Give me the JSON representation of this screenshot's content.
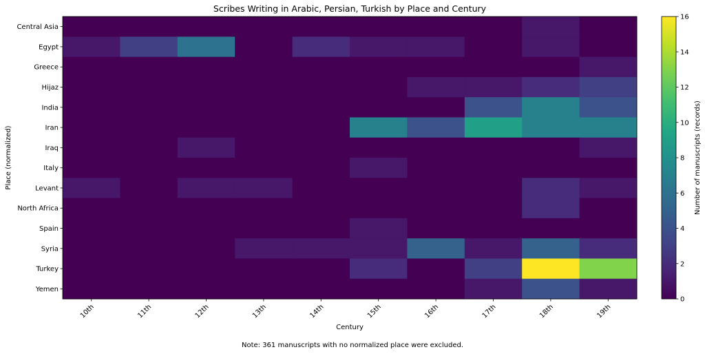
{
  "chart_data": {
    "type": "heatmap",
    "title": "Scribes Writing in Arabic, Persian, Turkish by Place and Century",
    "xlabel": "Century",
    "ylabel": "Place (normalized)",
    "x_categories": [
      "10th",
      "11th",
      "12th",
      "13th",
      "14th",
      "15th",
      "16th",
      "17th",
      "18th",
      "19th"
    ],
    "y_categories": [
      "Central Asia",
      "Egypt",
      "Greece",
      "Hijaz",
      "India",
      "Iran",
      "Iraq",
      "Italy",
      "Levant",
      "North Africa",
      "Spain",
      "Syria",
      "Turkey",
      "Yemen"
    ],
    "values": [
      [
        0,
        0,
        0,
        0,
        0,
        0,
        0,
        0,
        1,
        0
      ],
      [
        1,
        3,
        6,
        0,
        2,
        1,
        1,
        0,
        1,
        0
      ],
      [
        0,
        0,
        0,
        0,
        0,
        0,
        0,
        0,
        0,
        1
      ],
      [
        0,
        0,
        0,
        0,
        0,
        0,
        1,
        1,
        2,
        3
      ],
      [
        0,
        0,
        0,
        0,
        0,
        0,
        0,
        4,
        7,
        4
      ],
      [
        0,
        0,
        0,
        0,
        0,
        7,
        4,
        9,
        7,
        7
      ],
      [
        0,
        0,
        1,
        0,
        0,
        0,
        0,
        0,
        0,
        1
      ],
      [
        0,
        0,
        0,
        0,
        0,
        1,
        0,
        0,
        0,
        0
      ],
      [
        1,
        0,
        1,
        1,
        0,
        0,
        0,
        0,
        2,
        1
      ],
      [
        0,
        0,
        0,
        0,
        0,
        0,
        0,
        0,
        2,
        0
      ],
      [
        0,
        0,
        0,
        0,
        0,
        1,
        0,
        0,
        0,
        0
      ],
      [
        0,
        0,
        0,
        1,
        1,
        1,
        5,
        1,
        5,
        2
      ],
      [
        0,
        0,
        0,
        0,
        0,
        2,
        0,
        3,
        16,
        13
      ],
      [
        0,
        0,
        0,
        0,
        0,
        0,
        0,
        1,
        4,
        1
      ]
    ],
    "colorbar": {
      "label": "Number of manuscripts (records)",
      "min": 0,
      "max": 16,
      "ticks": [
        0,
        2,
        4,
        6,
        8,
        10,
        12,
        14,
        16
      ],
      "colormap": "viridis"
    },
    "note": "Note: 361 manuscripts with no normalized place were excluded."
  }
}
